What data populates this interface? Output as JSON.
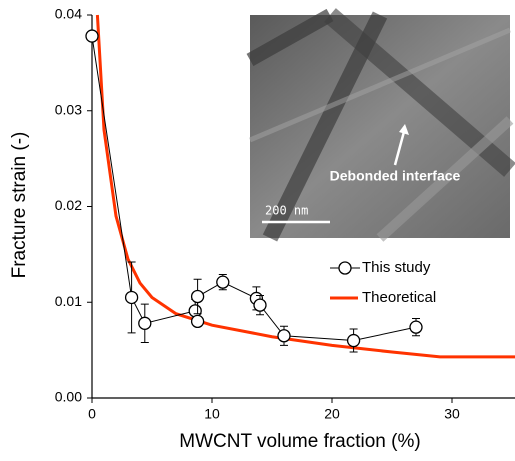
{
  "chart_data": {
    "type": "scatter",
    "ylabel": "Fracture strain (-)",
    "xlabel": "MWCNT  volume fraction (%)",
    "xlim": [
      0,
      35.25
    ],
    "xticks": [
      0,
      10,
      20,
      30
    ],
    "ylim": [
      0,
      0.04
    ],
    "yticks": [
      {
        "value": 0,
        "label": "0.00"
      },
      0.01,
      0.02,
      0.03,
      0.04
    ],
    "legend": "right",
    "series": [
      {
        "name": "This study",
        "color": "#000000",
        "x": [
          0,
          3.3,
          4.4,
          8.6,
          8.8,
          8.8,
          10.9,
          13.7,
          14.0,
          16.0,
          21.8,
          27.0
        ],
        "values": [
          0.0378,
          0.0105,
          0.0078,
          0.0091,
          0.008,
          0.0106,
          0.0121,
          0.0104,
          0.0097,
          0.0065,
          0.006,
          0.0074
        ],
        "errors": [
          null,
          0.0037,
          0.002,
          0.0012,
          0.0005,
          0.0018,
          0.0008,
          0.0012,
          0.001,
          0.001,
          0.0012,
          0.0009
        ]
      },
      {
        "name": "Theoretical",
        "color": "#ff3300",
        "x": [
          0.45,
          1,
          2,
          3,
          4,
          5,
          7,
          10,
          15,
          20,
          25,
          29,
          35.25
        ],
        "values": [
          0.04,
          0.028,
          0.019,
          0.0145,
          0.012,
          0.0105,
          0.0088,
          0.0076,
          0.0064,
          0.0055,
          0.0048,
          0.0043,
          0.0043
        ]
      }
    ],
    "inset": {
      "annotation": "Debonded interface",
      "scale_bar": "200 nm"
    }
  }
}
